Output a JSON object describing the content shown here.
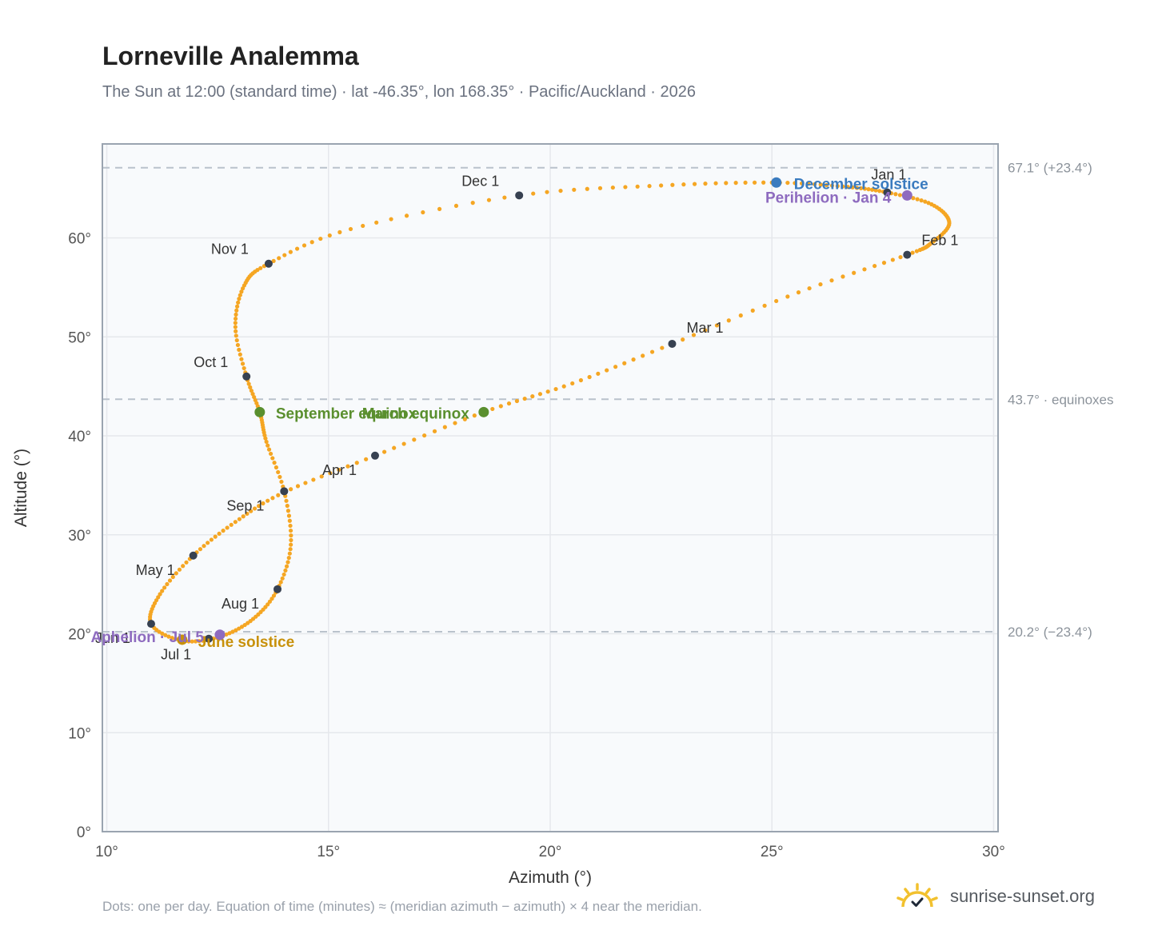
{
  "header": {
    "title": "Lorneville Analemma",
    "subtitle": "The Sun at 12:00 (standard time) · lat -46.35°, lon 168.35° · Pacific/Auckland · 2026"
  },
  "footer": {
    "note": "Dots: one per day. Equation of time (minutes) ≈ (meridian azimuth − azimuth) × 4 near the meridian.",
    "brand": "sunrise-sunset.org"
  },
  "chart_data": {
    "type": "scatter",
    "xlabel": "Azimuth (°)",
    "ylabel": "Altitude (°)",
    "xlim": [
      9.9,
      30.1
    ],
    "ylim": [
      0,
      69.5
    ],
    "x_ticks": [
      10,
      15,
      20,
      25,
      30
    ],
    "x_tick_labels": [
      "10°",
      "15°",
      "20°",
      "25°",
      "30°"
    ],
    "y_ticks": [
      0,
      10,
      20,
      30,
      40,
      50,
      60
    ],
    "y_tick_labels": [
      "0°",
      "10°",
      "20°",
      "30°",
      "40°",
      "50°",
      "60°"
    ],
    "grid": true,
    "colors": {
      "path": "#f5a623",
      "month_marker": "#374151",
      "december_solstice": "#3a7bbf",
      "june_solstice": "#c8910b",
      "equinox": "#5a8f2e",
      "apsis": "#8e6bbf",
      "reference_line": "#b9c2cc",
      "grid": "#e5e8ec",
      "plot_bg": "#f8fafc",
      "frame": "#9aa4b0"
    },
    "reference_lines": [
      {
        "altitude": 67.1,
        "label": "67.1° (+23.4°)"
      },
      {
        "altitude": 43.7,
        "label": "43.7° · equinoxes"
      },
      {
        "altitude": 20.2,
        "label": "20.2° (−23.4°)"
      }
    ],
    "series": [
      {
        "name": "Dots: one per day",
        "anchors": [
          [
            27.6,
            64.6
          ],
          [
            28.6,
            63.4
          ],
          [
            29.0,
            61.5
          ],
          [
            28.6,
            59.5
          ],
          [
            28.05,
            58.3
          ],
          [
            25.6,
            54.5
          ],
          [
            22.75,
            49.3
          ],
          [
            20.5,
            45.3
          ],
          [
            18.5,
            42.4
          ],
          [
            16.05,
            38.0
          ],
          [
            14.0,
            34.3
          ],
          [
            12.9,
            31.3
          ],
          [
            11.95,
            27.9
          ],
          [
            11.2,
            24.0
          ],
          [
            11.0,
            21.0
          ],
          [
            11.7,
            19.3
          ],
          [
            12.55,
            19.7
          ],
          [
            13.3,
            21.5
          ],
          [
            13.85,
            24.5
          ],
          [
            14.15,
            29.0
          ],
          [
            14.0,
            34.4
          ],
          [
            13.6,
            39.4
          ],
          [
            13.45,
            42.4
          ],
          [
            13.15,
            46.0
          ],
          [
            12.9,
            51.0
          ],
          [
            13.1,
            55.2
          ],
          [
            13.65,
            57.4
          ],
          [
            15.5,
            60.9
          ],
          [
            19.3,
            64.3
          ],
          [
            22.5,
            65.3
          ],
          [
            25.0,
            65.6
          ],
          [
            26.6,
            65.2
          ],
          [
            27.6,
            64.6
          ]
        ],
        "days_per_segment": 11
      }
    ],
    "month_markers": [
      {
        "label": "Jan 1",
        "x": 27.6,
        "y": 64.6
      },
      {
        "label": "Feb 1",
        "x": 28.05,
        "y": 58.3
      },
      {
        "label": "Mar 1",
        "x": 22.75,
        "y": 49.3
      },
      {
        "label": "Apr 1",
        "x": 16.05,
        "y": 38.0
      },
      {
        "label": "May 1",
        "x": 11.95,
        "y": 27.9
      },
      {
        "label": "Jun 1",
        "x": 11.0,
        "y": 21.0
      },
      {
        "label": "Jul 1",
        "x": 12.3,
        "y": 19.5
      },
      {
        "label": "Aug 1",
        "x": 13.85,
        "y": 24.5
      },
      {
        "label": "Sep 1",
        "x": 14.0,
        "y": 34.4
      },
      {
        "label": "Oct 1",
        "x": 13.15,
        "y": 46.0
      },
      {
        "label": "Nov 1",
        "x": 13.65,
        "y": 57.4
      },
      {
        "label": "Dec 1",
        "x": 19.3,
        "y": 64.3
      }
    ],
    "events": [
      {
        "label": "December solstice",
        "kind": "december_solstice",
        "x": 25.1,
        "y": 65.6
      },
      {
        "label": "Perihelion · Jan 4",
        "kind": "apsis",
        "x": 28.05,
        "y": 64.3
      },
      {
        "label": "March equinox",
        "kind": "equinox",
        "x": 18.5,
        "y": 42.4
      },
      {
        "label": "September equinox",
        "kind": "equinox",
        "x": 13.45,
        "y": 42.4
      },
      {
        "label": "June solstice",
        "kind": "june_solstice",
        "x": 11.7,
        "y": 19.4
      },
      {
        "label": "Aphelion · Jul 5",
        "kind": "apsis",
        "x": 12.55,
        "y": 19.9
      }
    ]
  }
}
